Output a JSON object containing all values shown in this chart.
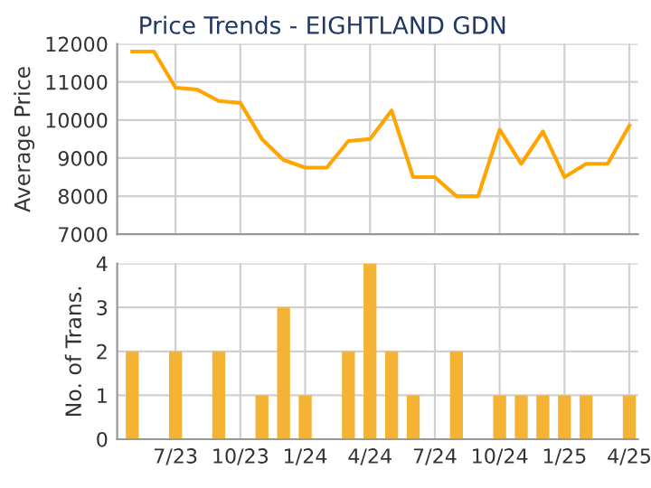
{
  "chart_data": [
    {
      "type": "line",
      "title": "Price Trends - EIGHTLAND GDN",
      "ylabel": "Average Price",
      "series": [
        {
          "color": "#ffa500",
          "values": [
            11800,
            11800,
            10850,
            10800,
            10500,
            10450,
            9500,
            8950,
            8750,
            8750,
            9450,
            9500,
            10250,
            8500,
            8500,
            8000,
            8000,
            9750,
            8850,
            9700,
            8500,
            8850,
            8850,
            9850
          ]
        }
      ],
      "ylim": [
        7000,
        12000
      ],
      "yticks": [
        7000,
        8000,
        9000,
        10000,
        11000,
        12000
      ],
      "grid": true,
      "tick_labels": "y",
      "marker": "none",
      "line_style": "solid"
    },
    {
      "type": "bar",
      "ylabel": "No. of Trans.",
      "categories": [
        null,
        null,
        "7/23",
        null,
        null,
        "10/23",
        null,
        null,
        "1/24",
        null,
        null,
        "4/24",
        null,
        null,
        "7/24",
        null,
        null,
        "10/24",
        null,
        null,
        "1/25",
        null,
        null,
        "4/25"
      ],
      "series": [
        {
          "color": "#f5b335",
          "values": [
            2,
            0,
            2,
            0,
            2,
            0,
            1,
            3,
            1,
            0,
            2,
            4,
            2,
            1,
            0,
            2,
            0,
            1,
            1,
            1,
            1,
            1,
            0,
            1
          ]
        }
      ],
      "ylim": [
        0,
        4
      ],
      "yticks": [
        0,
        1,
        2,
        3,
        4
      ],
      "grid": true
    }
  ]
}
